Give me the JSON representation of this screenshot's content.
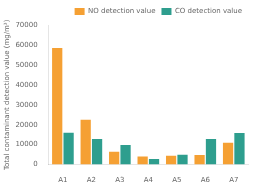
{
  "chart_data": {
    "type": "bar",
    "categories": [
      "A1",
      "A2",
      "A3",
      "A4",
      "A5",
      "A6",
      "A7"
    ],
    "series": [
      {
        "name": "NO detection value",
        "color": "#F5A033",
        "values": [
          58500,
          22500,
          6500,
          4000,
          4500,
          4800,
          11000
        ]
      },
      {
        "name": "CO detection value",
        "color": "#2E9E8E",
        "values": [
          16000,
          12800,
          9800,
          2800,
          5000,
          12800,
          15800
        ]
      }
    ],
    "ylabel": "Total contaminant detection value (mg/m³)",
    "ylim": [
      0,
      70000
    ],
    "yticks": [
      0,
      10000,
      20000,
      30000,
      40000,
      50000,
      60000,
      70000
    ],
    "grid": false,
    "legend": "upper right"
  }
}
